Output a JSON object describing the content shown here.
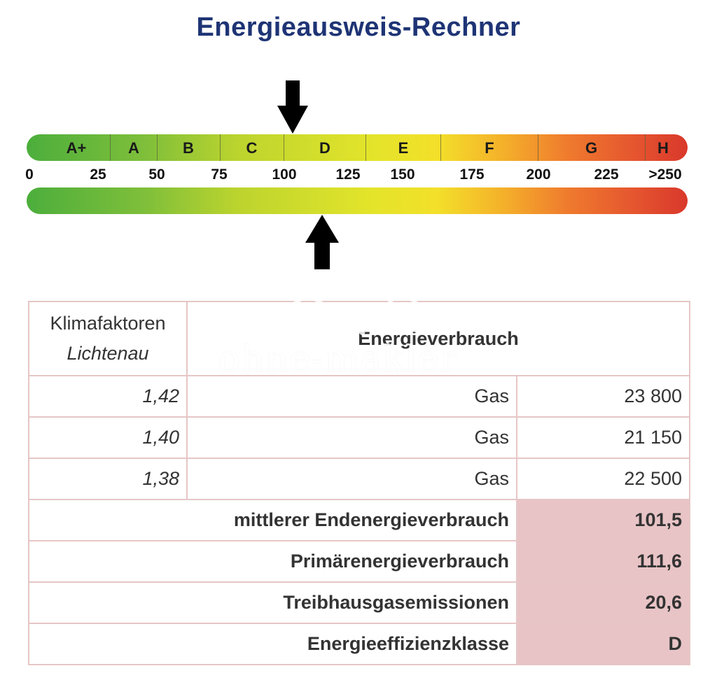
{
  "title": "Energieausweis-Rechner",
  "scale": {
    "classes": [
      "A+",
      "A",
      "B",
      "C",
      "D",
      "E",
      "F",
      "G",
      "H"
    ],
    "ticks": [
      "0",
      "25",
      "50",
      "75",
      "100",
      "125",
      "150",
      "175",
      "200",
      "225",
      ">250"
    ],
    "top_arrow_value": 101.5,
    "bottom_arrow_value": 111.6
  },
  "table": {
    "header": {
      "klima_line1": "Klimafaktoren",
      "klima_line2": "Lichtenau",
      "energy": "Energieverbrauch"
    },
    "rows": [
      {
        "factor": "1,42",
        "fuel": "Gas",
        "value": "23 800"
      },
      {
        "factor": "1,40",
        "fuel": "Gas",
        "value": "21 150"
      },
      {
        "factor": "1,38",
        "fuel": "Gas",
        "value": "22 500"
      }
    ],
    "summary": [
      {
        "label": "mittlerer Endenergieverbrauch",
        "value": "101,5"
      },
      {
        "label": "Primärenergieverbrauch",
        "value": "111,6"
      },
      {
        "label": "Treibhausgasemissionen",
        "value": "20,6"
      },
      {
        "label": "Energieeffizienzklasse",
        "value": "D"
      }
    ]
  },
  "watermark": "ohne-makler",
  "colors": {
    "title": "#1e3475",
    "table_border": "#e6c6c6",
    "highlight": "#e8c4c6"
  }
}
